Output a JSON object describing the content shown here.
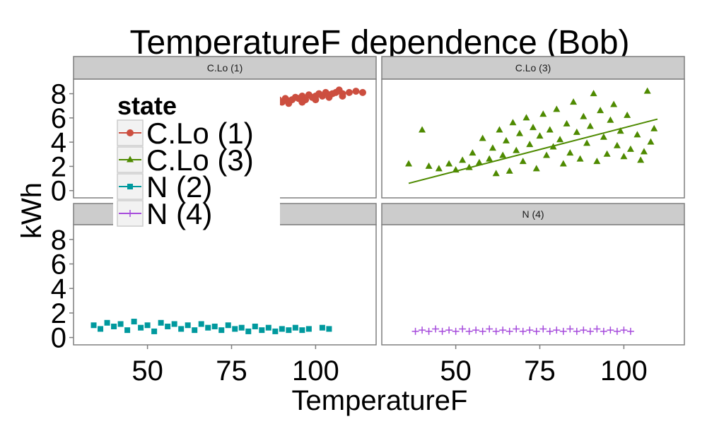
{
  "chart_data": {
    "type": "scatter",
    "title": "TemperatureF dependence (Bob)",
    "xlabel": "TemperatureF",
    "ylabel": "kWh",
    "xlim": [
      28,
      118
    ],
    "ylim": [
      -0.6,
      9.2
    ],
    "x_ticks": [
      50,
      75,
      100
    ],
    "y_ticks": [
      0,
      2,
      4,
      6,
      8
    ],
    "grid": false,
    "legend": {
      "title": "state",
      "position": "top-left",
      "entries": [
        "C.Lo (1)",
        "C.Lo (3)",
        "N (2)",
        "N (4)"
      ]
    },
    "panels": [
      {
        "label": "C.Lo (1)",
        "series": "C.Lo (1)",
        "color": "#cc4e3f",
        "marker": "circle",
        "points": [
          [
            86,
            7.2
          ],
          [
            87,
            7.4
          ],
          [
            88,
            7.2
          ],
          [
            89,
            7.5
          ],
          [
            90,
            7.3
          ],
          [
            91,
            7.6
          ],
          [
            92,
            7.4
          ],
          [
            93,
            7.5
          ],
          [
            94,
            7.7
          ],
          [
            95,
            7.6
          ],
          [
            96,
            7.8
          ],
          [
            97,
            7.5
          ],
          [
            98,
            7.9
          ],
          [
            99,
            7.7
          ],
          [
            100,
            7.8
          ],
          [
            101,
            8.0
          ],
          [
            102,
            7.8
          ],
          [
            103,
            8.1
          ],
          [
            104,
            7.9
          ],
          [
            105,
            8.0
          ],
          [
            106,
            8.1
          ],
          [
            107,
            8.3
          ],
          [
            108,
            8.0
          ],
          [
            110,
            8.1
          ],
          [
            112,
            8.2
          ],
          [
            114,
            8.1
          ],
          [
            88,
            7.0
          ],
          [
            92,
            7.2
          ],
          [
            96,
            7.3
          ],
          [
            100,
            7.5
          ],
          [
            104,
            7.7
          ],
          [
            108,
            7.8
          ]
        ]
      },
      {
        "label": "C.Lo (3)",
        "series": "C.Lo (3)",
        "color": "#4e8a00",
        "marker": "triangle",
        "trend": [
          [
            36,
            0.6
          ],
          [
            110,
            5.9
          ]
        ],
        "points": [
          [
            36,
            2.2
          ],
          [
            40,
            5.0
          ],
          [
            42,
            2.0
          ],
          [
            45,
            1.8
          ],
          [
            48,
            2.2
          ],
          [
            50,
            1.7
          ],
          [
            52,
            2.5
          ],
          [
            54,
            1.9
          ],
          [
            55,
            3.1
          ],
          [
            57,
            2.3
          ],
          [
            58,
            4.3
          ],
          [
            60,
            2.6
          ],
          [
            61,
            3.5
          ],
          [
            62,
            1.4
          ],
          [
            63,
            5.0
          ],
          [
            64,
            2.9
          ],
          [
            65,
            4.1
          ],
          [
            66,
            1.6
          ],
          [
            67,
            5.6
          ],
          [
            68,
            3.3
          ],
          [
            69,
            4.7
          ],
          [
            70,
            2.4
          ],
          [
            71,
            6.0
          ],
          [
            72,
            3.8
          ],
          [
            73,
            5.2
          ],
          [
            74,
            1.8
          ],
          [
            75,
            4.5
          ],
          [
            76,
            6.3
          ],
          [
            77,
            2.9
          ],
          [
            78,
            5.0
          ],
          [
            79,
            3.6
          ],
          [
            80,
            6.7
          ],
          [
            81,
            4.2
          ],
          [
            82,
            2.2
          ],
          [
            83,
            5.5
          ],
          [
            84,
            3.1
          ],
          [
            85,
            7.3
          ],
          [
            86,
            4.8
          ],
          [
            87,
            2.6
          ],
          [
            88,
            6.1
          ],
          [
            89,
            3.9
          ],
          [
            90,
            5.3
          ],
          [
            91,
            8.0
          ],
          [
            92,
            2.4
          ],
          [
            93,
            6.6
          ],
          [
            94,
            4.4
          ],
          [
            95,
            3.0
          ],
          [
            96,
            5.8
          ],
          [
            97,
            7.1
          ],
          [
            98,
            3.7
          ],
          [
            99,
            4.9
          ],
          [
            100,
            2.8
          ],
          [
            101,
            6.2
          ],
          [
            102,
            3.4
          ],
          [
            104,
            4.6
          ],
          [
            105,
            2.5
          ],
          [
            106,
            3.2
          ],
          [
            107,
            8.2
          ],
          [
            108,
            4.0
          ],
          [
            109,
            5.1
          ]
        ]
      },
      {
        "label": "",
        "series": "N (2)",
        "color": "#00999e",
        "marker": "square",
        "points": [
          [
            34,
            1.0
          ],
          [
            36,
            0.7
          ],
          [
            38,
            1.2
          ],
          [
            40,
            0.9
          ],
          [
            42,
            1.1
          ],
          [
            44,
            0.6
          ],
          [
            46,
            1.3
          ],
          [
            48,
            0.8
          ],
          [
            50,
            1.0
          ],
          [
            52,
            0.5
          ],
          [
            54,
            1.2
          ],
          [
            56,
            0.9
          ],
          [
            58,
            1.1
          ],
          [
            60,
            0.7
          ],
          [
            62,
            1.0
          ],
          [
            64,
            0.6
          ],
          [
            66,
            1.1
          ],
          [
            68,
            0.8
          ],
          [
            70,
            0.9
          ],
          [
            72,
            0.6
          ],
          [
            74,
            1.0
          ],
          [
            76,
            0.7
          ],
          [
            78,
            0.8
          ],
          [
            80,
            0.5
          ],
          [
            82,
            0.9
          ],
          [
            84,
            0.6
          ],
          [
            86,
            0.8
          ],
          [
            88,
            0.5
          ],
          [
            90,
            0.7
          ],
          [
            92,
            0.6
          ],
          [
            94,
            0.8
          ],
          [
            96,
            0.6
          ],
          [
            98,
            0.7
          ],
          [
            102,
            0.8
          ],
          [
            104,
            0.7
          ]
        ]
      },
      {
        "label": "N (4)",
        "series": "N (4)",
        "color": "#a64cdc",
        "marker": "cross",
        "points": [
          [
            38,
            0.5
          ],
          [
            40,
            0.6
          ],
          [
            42,
            0.5
          ],
          [
            44,
            0.7
          ],
          [
            46,
            0.5
          ],
          [
            48,
            0.6
          ],
          [
            50,
            0.5
          ],
          [
            52,
            0.7
          ],
          [
            54,
            0.5
          ],
          [
            56,
            0.6
          ],
          [
            58,
            0.5
          ],
          [
            60,
            0.7
          ],
          [
            62,
            0.5
          ],
          [
            64,
            0.6
          ],
          [
            66,
            0.5
          ],
          [
            68,
            0.7
          ],
          [
            70,
            0.5
          ],
          [
            72,
            0.6
          ],
          [
            74,
            0.5
          ],
          [
            76,
            0.7
          ],
          [
            78,
            0.5
          ],
          [
            80,
            0.6
          ],
          [
            82,
            0.5
          ],
          [
            84,
            0.7
          ],
          [
            86,
            0.5
          ],
          [
            88,
            0.6
          ],
          [
            90,
            0.5
          ],
          [
            92,
            0.7
          ],
          [
            94,
            0.5
          ],
          [
            96,
            0.6
          ],
          [
            98,
            0.5
          ],
          [
            100,
            0.6
          ],
          [
            102,
            0.5
          ]
        ]
      }
    ]
  }
}
